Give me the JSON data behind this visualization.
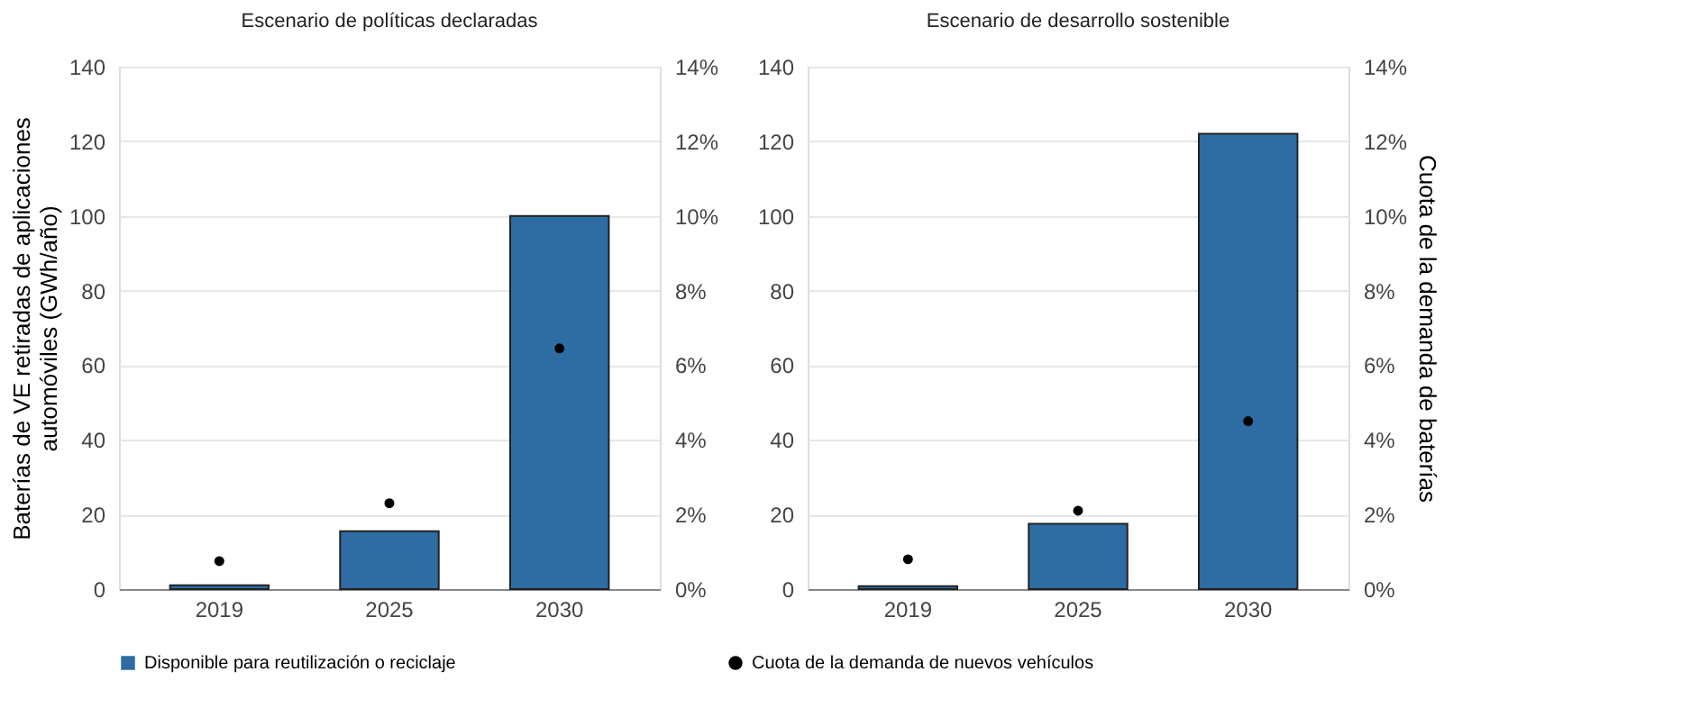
{
  "chart_data": [
    {
      "type": "bar",
      "title": "Escenario de políticas declaradas",
      "ylabel": "Baterías de VE retiradas de aplicaciones automóviles (GWh/año)",
      "categories": [
        "2019",
        "2025",
        "2030"
      ],
      "series": [
        {
          "name": "Disponible para reutilización o reciclaje",
          "color": "#2e6da4",
          "values": [
            1,
            15.5,
            100
          ]
        },
        {
          "name": "Cuota de la demanda de nuevos vehículos",
          "color": "#000000",
          "type": "scatter",
          "axis": "y2",
          "values": [
            0.75,
            2.3,
            6.45
          ]
        }
      ],
      "ylim": [
        0,
        140
      ],
      "yticks": [
        0,
        20,
        40,
        60,
        80,
        100,
        120,
        140
      ],
      "y2lim": [
        0,
        14
      ],
      "y2ticks": [
        {
          "value": 0,
          "label": "0%"
        },
        {
          "value": 2,
          "label": "2%"
        },
        {
          "value": 4,
          "label": "4%"
        },
        {
          "value": 6,
          "label": "6%"
        },
        {
          "value": 8,
          "label": "8%"
        },
        {
          "value": 10,
          "label": "10%"
        },
        {
          "value": 12,
          "label": "12%"
        },
        {
          "value": 14,
          "label": "14%"
        }
      ],
      "grid": "y",
      "legend": "bottom",
      "marker": "circle"
    },
    {
      "type": "bar",
      "title": "Escenario de desarrollo sostenible",
      "y2label": "Cuota de la demanda de baterías",
      "categories": [
        "2019",
        "2025",
        "2030"
      ],
      "series": [
        {
          "name": "Disponible para reutilización o reciclaje",
          "color": "#2e6da4",
          "values": [
            0.8,
            17.5,
            122
          ]
        },
        {
          "name": "Cuota de la demanda de nuevos vehículos",
          "color": "#000000",
          "type": "scatter",
          "axis": "y2",
          "values": [
            0.8,
            2.1,
            4.5
          ]
        }
      ],
      "ylim": [
        0,
        140
      ],
      "yticks": [
        0,
        20,
        40,
        60,
        80,
        100,
        120,
        140
      ],
      "y2lim": [
        0,
        14
      ],
      "y2ticks": [
        {
          "value": 0,
          "label": "0%"
        },
        {
          "value": 2,
          "label": "2%"
        },
        {
          "value": 4,
          "label": "4%"
        },
        {
          "value": 6,
          "label": "6%"
        },
        {
          "value": 8,
          "label": "8%"
        },
        {
          "value": 10,
          "label": "10%"
        },
        {
          "value": 12,
          "label": "12%"
        },
        {
          "value": 14,
          "label": "14%"
        }
      ],
      "grid": "y",
      "legend": "bottom",
      "marker": "circle"
    }
  ]
}
